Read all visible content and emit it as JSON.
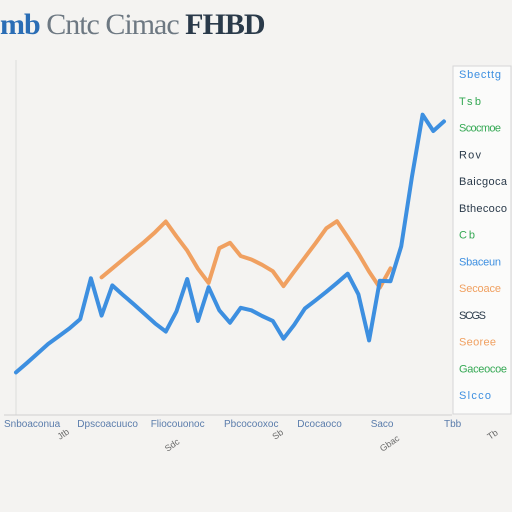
{
  "header": {
    "title_mark": "mb",
    "title_name": "Cntc Cimac",
    "title_ticker": "FHBD"
  },
  "chart_data": {
    "type": "line",
    "title": "mb Cntc Cimac FHBD",
    "xlabel": "",
    "ylabel": "",
    "grid": false,
    "legend_position": "right",
    "x": [
      0,
      1,
      2,
      3,
      4,
      5,
      6,
      7,
      8,
      9,
      10,
      11,
      12,
      13,
      14,
      15,
      16,
      17,
      18,
      19,
      20,
      21,
      22,
      23,
      24,
      25,
      26,
      27,
      28,
      29,
      30,
      31,
      32,
      33,
      34,
      35,
      36,
      37,
      38,
      39,
      40
    ],
    "xlim": [
      0,
      40
    ],
    "ylim": [
      0,
      100
    ],
    "series": [
      {
        "name": "",
        "color": "#3d8fe0",
        "values": [
          12,
          14.6,
          17.3,
          20,
          22.2,
          24.4,
          27,
          38.5,
          28,
          36.5,
          33.8,
          31.2,
          28.5,
          25.8,
          23.5,
          29.2,
          38.3,
          26.5,
          36,
          29.5,
          26,
          30.2,
          29.5,
          27.9,
          26.5,
          21.5,
          25.4,
          30,
          32.3,
          34.7,
          37.2,
          39.8,
          34,
          21,
          37.8,
          37.7,
          47.5,
          67,
          84.6,
          80,
          82.7
        ]
      },
      {
        "name": "",
        "color": "#f0a060",
        "values": [
          null,
          null,
          null,
          null,
          null,
          null,
          null,
          null,
          38.8,
          41.3,
          43.8,
          46.3,
          48.8,
          51.5,
          54.5,
          50.3,
          46.3,
          41.2,
          37.2,
          47,
          48.5,
          44.8,
          43.8,
          42.3,
          40.5,
          36.3,
          40.4,
          44.4,
          48.4,
          52.6,
          54.6,
          50.1,
          45.5,
          40.4,
          35.9,
          41.3,
          null,
          null,
          null,
          null,
          null
        ]
      }
    ],
    "legend_entries": [
      {
        "color": "#3d8fe0",
        "text": "Sbecttg"
      },
      {
        "color": "#34a853",
        "text": "Tsb"
      },
      {
        "color": "#34a853",
        "text": "Scocmoe"
      },
      {
        "color": "#2a3a4a",
        "text": "Rov"
      },
      {
        "color": "#2a3a4a",
        "text": "Baicgoca"
      },
      {
        "color": "#2a3a4a",
        "text": "Bthecoco"
      },
      {
        "color": "#34a853",
        "text": "Cb"
      },
      {
        "color": "#3d8fe0",
        "text": "Sbaceun"
      },
      {
        "color": "#f0a060",
        "text": "Secoace"
      },
      {
        "color": "#2a3a4a",
        "text": "SCGS"
      },
      {
        "color": "#f0a060",
        "text": "Seoree"
      },
      {
        "color": "#34a853",
        "text": "Gaceocoe"
      },
      {
        "color": "#3d8fe0",
        "text": "Slcco"
      }
    ],
    "x_tick_labels": [
      "Snboaconua",
      "Dpscoacuuco",
      "Fliocouonoc",
      "Pbcocooxoc",
      "Dcocaoco",
      "Saco",
      "Tbb"
    ],
    "x_sub_labels": [
      "Jtb",
      "Sdc",
      "Sb",
      "Gbac",
      "Tb"
    ]
  }
}
